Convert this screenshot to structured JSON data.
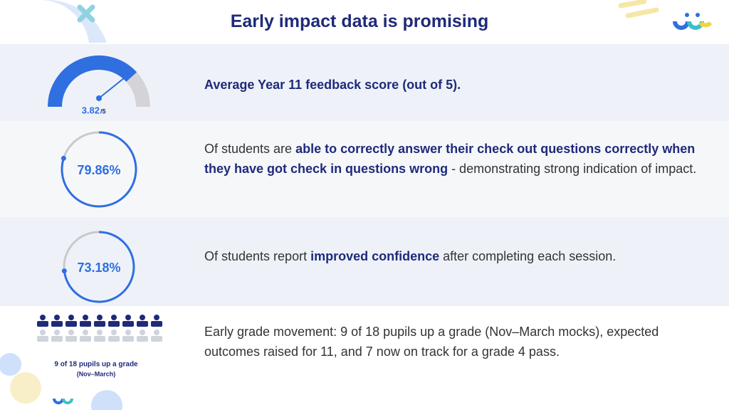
{
  "title": "Early impact data is promising",
  "rows": [
    {
      "score": {
        "value": 3.82,
        "max": {
          "value": 5,
          "label": "/5"
        }
      },
      "text": [
        {
          "text": "Average Year 11 feedback score (out of 5).",
          "bold": true
        }
      ]
    },
    {
      "ring": {
        "value": 79.86,
        "label": "79.86%"
      },
      "text": [
        {
          "text": "Of students are ",
          "bold": false
        },
        {
          "text": "able to correctly answer their check out questions correctly when they have got check in questions wrong",
          "bold": true
        },
        {
          "text": " - demonstrating strong indication of impact.",
          "bold": false
        }
      ]
    },
    {
      "ring": {
        "value": 73.18,
        "label": "73.18%"
      },
      "text": [
        {
          "text": "Of students report ",
          "bold": false
        },
        {
          "text": "improved confidence",
          "bold": true
        },
        {
          "text": " after completing each session.",
          "bold": false
        }
      ]
    },
    {
      "pupils": {
        "up": 9,
        "total": 18,
        "caption": [
          "9 of 18 pupils up a grade",
          "(Nov–March)"
        ]
      },
      "text": [
        {
          "text": "Early grade movement: 9 of 18 pupils up a grade (Nov–March mocks), expected outcomes raised for 11, and 7 now on track for a grade 4 pass.",
          "bold": false
        }
      ]
    }
  ]
}
